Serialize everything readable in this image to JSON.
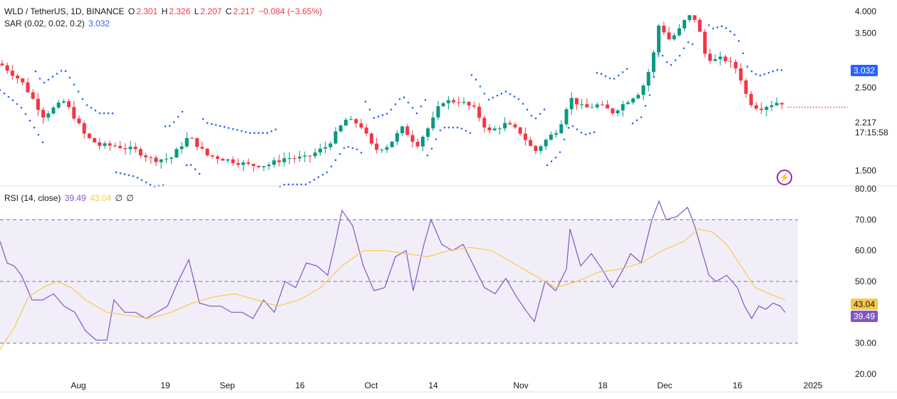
{
  "legend": {
    "symbol": "WLD / TetherUS, 1D, BINANCE",
    "o_label": "O",
    "o_val": "2.301",
    "h_label": "H",
    "h_val": "2.326",
    "l_label": "L",
    "l_val": "2.207",
    "c_label": "C",
    "c_val": "2.217",
    "change": "−0.084 (−3.65%)",
    "sar_label": "SAR (0.02, 0.02, 0.2)",
    "sar_val": "3.032",
    "rsi_label": "RSI (14, close)",
    "rsi_val": "39.49",
    "rsi_ma_val": "43.04",
    "rsi_extra1": "∅",
    "rsi_extra2": "∅"
  },
  "price_badges": {
    "sar": "3.032",
    "last": "2.217",
    "countdown": "17:15:58",
    "rsi": "39.49",
    "rsi_ma": "43.04"
  },
  "colors": {
    "up": "#089981",
    "down": "#f23645",
    "sar": "#2962ff",
    "rsi": "#7e57c2",
    "rsi_ma": "#f7c948",
    "band": "#ede7f6"
  },
  "chart_data": [
    {
      "type": "candlestick",
      "title": "WLD / TetherUS, 1D, BINANCE",
      "y_scale": "log",
      "y_ticks": [
        "4.000",
        "3.500",
        "2.500",
        "1.500"
      ],
      "x_ticks": [
        "Aug",
        "19",
        "Sep",
        "16",
        "Oct",
        "14",
        "Nov",
        "18",
        "Dec",
        "16",
        "2025"
      ],
      "ylim": [
        1.4,
        4.2
      ],
      "ohlc_summary": [
        {
          "date": "Jul-end",
          "close": 2.8
        },
        {
          "date": "Aug-early",
          "close": 1.7
        },
        {
          "date": "Aug-19",
          "close": 1.7
        },
        {
          "date": "Sep-early",
          "close": 1.55
        },
        {
          "date": "Sep-16",
          "close": 1.6
        },
        {
          "date": "Sep-end",
          "close": 2.05
        },
        {
          "date": "Oct-early",
          "close": 1.7
        },
        {
          "date": "Oct-14",
          "close": 2.3
        },
        {
          "date": "Nov-early",
          "close": 1.75
        },
        {
          "date": "Nov-18",
          "close": 2.3
        },
        {
          "date": "Dec-early",
          "close": 4.0
        },
        {
          "date": "Dec-16",
          "close": 2.3
        },
        {
          "date": "last",
          "open": 2.301,
          "high": 2.326,
          "low": 2.207,
          "close": 2.217
        }
      ],
      "sar_last": 3.032
    },
    {
      "type": "line",
      "title": "RSI (14, close)",
      "y_ticks": [
        "80.00",
        "70.00",
        "60.00",
        "50.00",
        "30.00",
        "20.00"
      ],
      "band": [
        30,
        70
      ],
      "ylim": [
        20,
        80
      ],
      "rsi_last": 39.49,
      "rsi_ma_last": 43.04
    }
  ]
}
